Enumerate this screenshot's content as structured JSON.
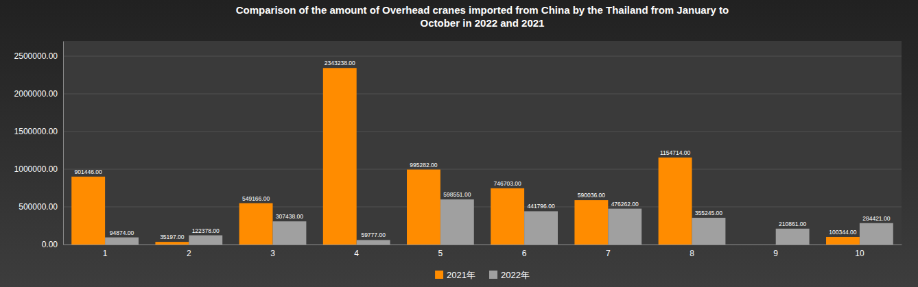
{
  "chart_data": {
    "type": "bar",
    "title": "Comparison of the amount of Overhead cranes imported from China by the Thailand from January to\nOctober in 2022 and 2021",
    "categories": [
      1,
      2,
      3,
      4,
      5,
      6,
      7,
      8,
      9,
      10
    ],
    "series": [
      {
        "name": "2021年",
        "color": "#FF8C00",
        "values": [
          901446,
          35197,
          549166,
          2343238,
          995282,
          746703,
          590036,
          1154714,
          0,
          100344
        ],
        "value_labels": [
          "901446.00",
          "35197.00",
          "549166.00",
          "2343238.00",
          "995282.00",
          "746703.00",
          "590036.00",
          "1154714.00",
          null,
          "100344.00"
        ]
      },
      {
        "name": "2022年",
        "color": "#A0A0A0",
        "values": [
          94874,
          122378,
          307438,
          59777,
          598551,
          441796,
          476262,
          355245,
          210861,
          284421
        ],
        "value_labels": [
          "94874.00",
          "122378.00",
          "307438.00",
          "59777.00",
          "598551.00",
          "441796.00",
          "476262.00",
          "355245.00",
          "210861.00",
          "284421.00"
        ]
      }
    ],
    "ylim": [
      0,
      2700000
    ],
    "yticks": [
      {
        "value": 0,
        "label": "0.00"
      },
      {
        "value": 500000,
        "label": "500000.00"
      },
      {
        "value": 1000000,
        "label": "1000000.00"
      },
      {
        "value": 1500000,
        "label": "1500000.00"
      },
      {
        "value": 2000000,
        "label": "2000000.00"
      },
      {
        "value": 2500000,
        "label": "2500000.00"
      }
    ],
    "grid": true,
    "legend": "bottom",
    "data_labels": true
  }
}
